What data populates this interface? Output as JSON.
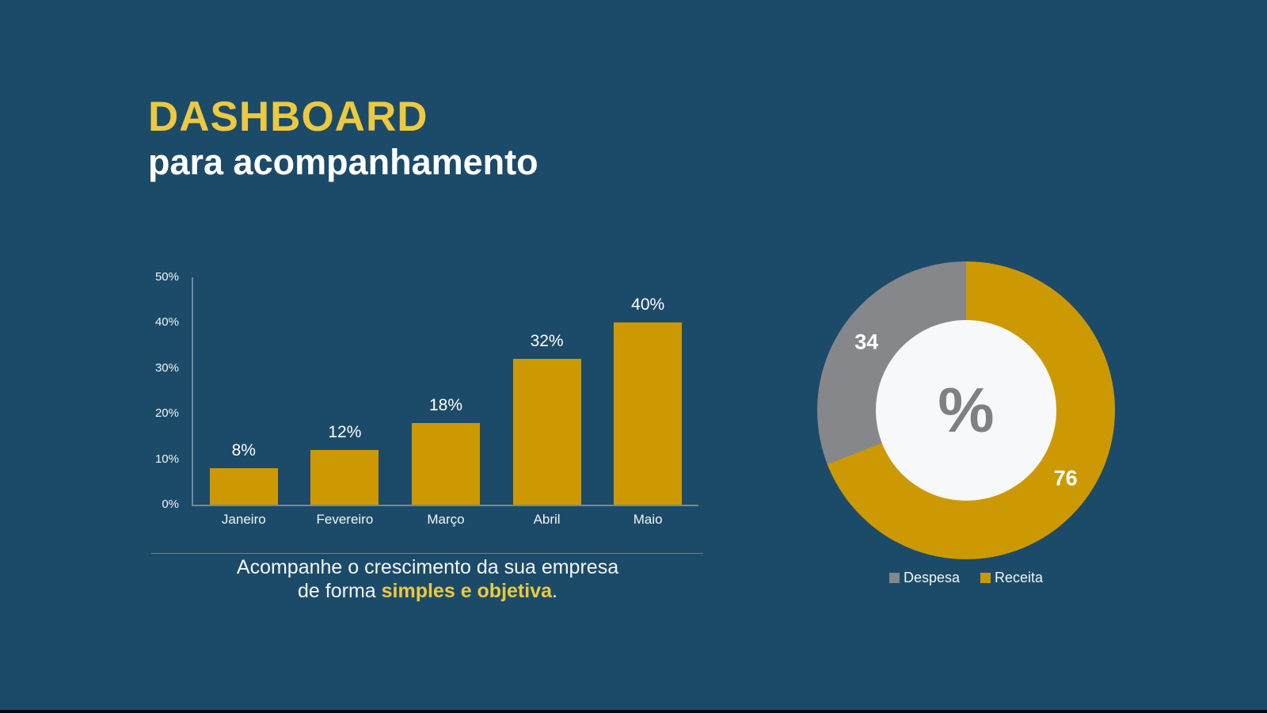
{
  "colors": {
    "background": "#1C4B69",
    "accent_yellow": "#EDC93F",
    "gold": "#CD9903",
    "gray": "#85878A",
    "hole": "#F7F8F9",
    "percent_gray": "#7E8083",
    "axis": "#74889A",
    "divider": "#6B8294"
  },
  "header": {
    "title": "DASHBOARD",
    "subtitle": "para acompanhamento"
  },
  "caption": {
    "line1": "Acompanhe o crescimento da sua empresa",
    "line2_prefix": "de forma ",
    "line2_highlight": "simples e objetiva",
    "line2_suffix": "."
  },
  "chart_data": [
    {
      "type": "bar",
      "title": "",
      "categories": [
        "Janeiro",
        "Fevereiro",
        "Março",
        "Abril",
        "Maio"
      ],
      "values": [
        8,
        12,
        18,
        32,
        40
      ],
      "labels": [
        "8%",
        "12%",
        "18%",
        "32%",
        "40%"
      ],
      "ylim": [
        0,
        50
      ],
      "y_tick_values": [
        0,
        10,
        20,
        30,
        40,
        50
      ],
      "y_tick_labels": [
        "0%",
        "10%",
        "20%",
        "30%",
        "40%",
        "50%"
      ],
      "bar_color": "#CD9903",
      "grid": false,
      "legend_position": "none"
    },
    {
      "type": "donut",
      "title": "",
      "center_symbol": "%",
      "start_angle_deg": 0,
      "direction": "clockwise",
      "hole_color": "#F7F8F9",
      "label_radius": 0.81,
      "slices": [
        {
          "name": "Receita",
          "value": 76,
          "color": "#CD9903"
        },
        {
          "name": "Despesa",
          "value": 34,
          "color": "#85878A"
        }
      ],
      "legend_position": "bottom",
      "legend": [
        {
          "label": "Despesa",
          "color": "#85878A"
        },
        {
          "label": "Receita",
          "color": "#CD9903"
        }
      ]
    }
  ]
}
